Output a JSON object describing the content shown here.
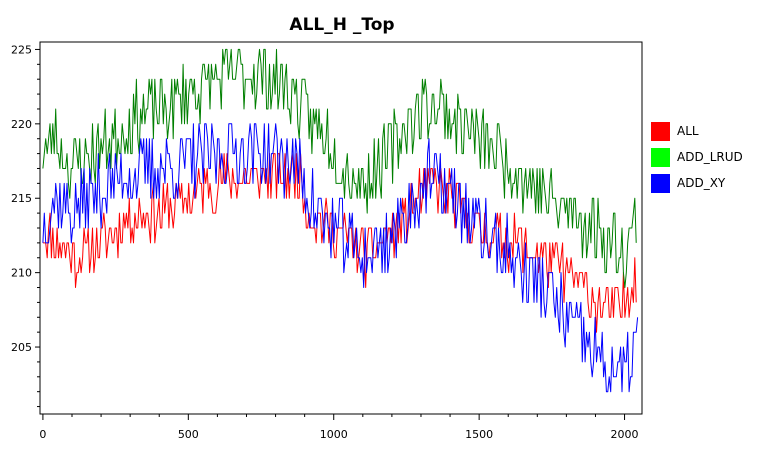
{
  "chart_data": {
    "type": "line",
    "title": "ALL_H _Top",
    "xlabel": "",
    "ylabel": "",
    "xlim": [
      -10,
      2060
    ],
    "ylim": [
      200.5,
      225.5
    ],
    "xticks": [
      0,
      500,
      1000,
      1500,
      2000
    ],
    "yticks": [
      205,
      210,
      215,
      220,
      225
    ],
    "grid": false,
    "legend": "right",
    "series": [
      {
        "name": "ALL",
        "color": "#ff0000",
        "anchors": [
          [
            0,
            213
          ],
          [
            60,
            212
          ],
          [
            120,
            211
          ],
          [
            200,
            212
          ],
          [
            260,
            213
          ],
          [
            320,
            214
          ],
          [
            400,
            214
          ],
          [
            500,
            215
          ],
          [
            600,
            216
          ],
          [
            700,
            216.5
          ],
          [
            800,
            216.5
          ],
          [
            880,
            216.5
          ],
          [
            920,
            214
          ],
          [
            1000,
            213
          ],
          [
            1060,
            212
          ],
          [
            1120,
            211
          ],
          [
            1160,
            212
          ],
          [
            1220,
            213
          ],
          [
            1280,
            215
          ],
          [
            1340,
            216
          ],
          [
            1400,
            215
          ],
          [
            1450,
            214
          ],
          [
            1500,
            213
          ],
          [
            1560,
            212.5
          ],
          [
            1620,
            212
          ],
          [
            1680,
            211.5
          ],
          [
            1740,
            211
          ],
          [
            1800,
            210
          ],
          [
            1860,
            209
          ],
          [
            1900,
            208
          ],
          [
            1960,
            207.5
          ],
          [
            2000,
            208
          ],
          [
            2040,
            210
          ]
        ],
        "amplitude": 1.3,
        "seed": 11
      },
      {
        "name": "ADD_LRUD",
        "color": "#007f00",
        "anchors": [
          [
            0,
            218
          ],
          [
            40,
            219
          ],
          [
            100,
            217
          ],
          [
            160,
            218
          ],
          [
            240,
            219
          ],
          [
            300,
            220
          ],
          [
            360,
            221
          ],
          [
            420,
            221
          ],
          [
            500,
            222
          ],
          [
            600,
            223
          ],
          [
            700,
            223.5
          ],
          [
            800,
            223
          ],
          [
            860,
            222
          ],
          [
            920,
            220
          ],
          [
            980,
            219
          ],
          [
            1040,
            217
          ],
          [
            1100,
            216
          ],
          [
            1160,
            217
          ],
          [
            1220,
            219
          ],
          [
            1280,
            220.5
          ],
          [
            1330,
            221.5
          ],
          [
            1380,
            221
          ],
          [
            1440,
            220
          ],
          [
            1500,
            219
          ],
          [
            1560,
            218
          ],
          [
            1620,
            217
          ],
          [
            1680,
            216
          ],
          [
            1740,
            215
          ],
          [
            1800,
            214
          ],
          [
            1860,
            213.5
          ],
          [
            1920,
            212.5
          ],
          [
            1970,
            212
          ],
          [
            2010,
            211.5
          ],
          [
            2040,
            214
          ]
        ],
        "amplitude": 1.6,
        "seed": 23
      },
      {
        "name": "ADD_XY",
        "color": "#0000ff",
        "anchors": [
          [
            0,
            213.5
          ],
          [
            40,
            215
          ],
          [
            100,
            214
          ],
          [
            160,
            215
          ],
          [
            240,
            216
          ],
          [
            300,
            216.5
          ],
          [
            400,
            217
          ],
          [
            500,
            217.5
          ],
          [
            600,
            218
          ],
          [
            700,
            218.5
          ],
          [
            800,
            218
          ],
          [
            880,
            217
          ],
          [
            940,
            214
          ],
          [
            1000,
            213
          ],
          [
            1060,
            212
          ],
          [
            1120,
            211
          ],
          [
            1160,
            212
          ],
          [
            1220,
            213
          ],
          [
            1280,
            215
          ],
          [
            1330,
            216.5
          ],
          [
            1400,
            215.5
          ],
          [
            1460,
            214
          ],
          [
            1520,
            212.5
          ],
          [
            1580,
            211.5
          ],
          [
            1640,
            210.5
          ],
          [
            1700,
            209.5
          ],
          [
            1760,
            208
          ],
          [
            1820,
            206.5
          ],
          [
            1880,
            205
          ],
          [
            1940,
            203.5
          ],
          [
            2000,
            203
          ],
          [
            2030,
            204.5
          ],
          [
            2045,
            206.5
          ]
        ],
        "amplitude": 1.7,
        "seed": 37
      }
    ],
    "n_points": 420
  }
}
